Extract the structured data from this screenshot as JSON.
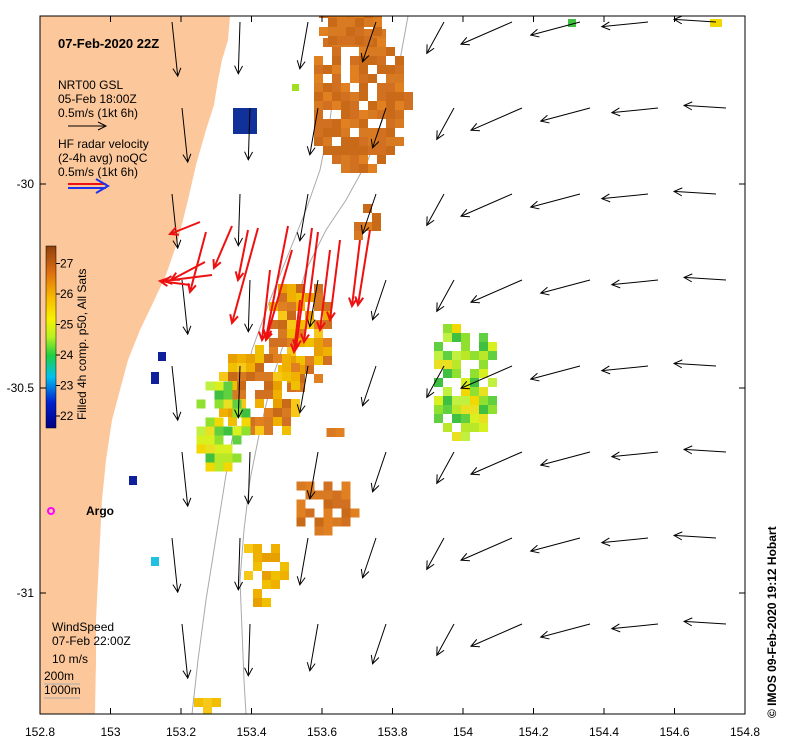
{
  "map": {
    "title": "07-Feb-2020 22Z",
    "legend_gsl": {
      "line1": "NRT00 GSL",
      "line2": "05-Feb 18:00Z",
      "line3": "0.5m/s (1kt 6h)"
    },
    "legend_hf": {
      "line1": "HF radar velocity",
      "line2": "(2-4h avg) noQC",
      "line3": "0.5m/s (1kt 6h)"
    },
    "colorbar": {
      "label": "Filled 4h comp. p50, All Sats",
      "ticks": [
        "22",
        "23",
        "24",
        "25",
        "26",
        "27"
      ]
    },
    "argo_label": "Argo",
    "wind": {
      "line1": "WindSpeed",
      "line2": "07-Feb 22:00Z",
      "line3": "10 m/s"
    },
    "bathy": {
      "line1": "200m",
      "line2": "1000m"
    },
    "credit": "© IMOS 09-Feb-2020 19:12 Hobart",
    "x_ticks": [
      "152.8",
      "153",
      "153.2",
      "153.4",
      "153.6",
      "153.8",
      "154",
      "154.2",
      "154.4",
      "154.6",
      "154.8"
    ],
    "y_ticks": [
      "-30",
      "-30.5",
      "-31"
    ],
    "colors": {
      "land": "#fcc89b",
      "hf_arrow": "#ee1111",
      "hf_legend_blue": "#2233ee",
      "argo": "#ff00ff"
    }
  }
}
